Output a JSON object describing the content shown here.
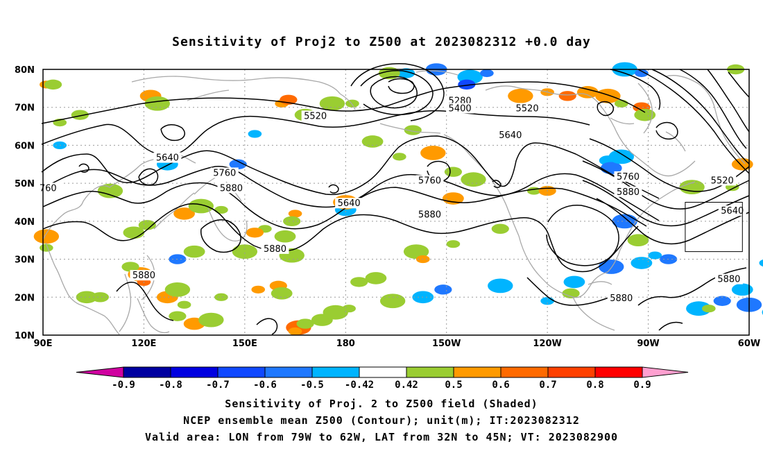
{
  "title": "Sensitivity of Proj2 to Z500 at 2023082312 +0.0 day",
  "map": {
    "lon_range": [
      90,
      300
    ],
    "lat_range": [
      10,
      80
    ],
    "lat_ticks": [
      "10N",
      "20N",
      "30N",
      "40N",
      "50N",
      "60N",
      "70N",
      "80N"
    ],
    "lon_ticks": [
      "90E",
      "120E",
      "150E",
      "180",
      "150W",
      "120W",
      "90W",
      "60W"
    ],
    "lon_tick_values": [
      90,
      120,
      150,
      180,
      210,
      240,
      270,
      300
    ],
    "grid": true,
    "valid_box": {
      "lon": [
        281,
        298
      ],
      "lat": [
        32,
        45
      ]
    },
    "contour_labels": [
      {
        "text": "5280",
        "lon": 214,
        "lat": 71.5
      },
      {
        "text": "5400",
        "lon": 214,
        "lat": 69.5
      },
      {
        "text": "5520",
        "lon": 171,
        "lat": 67.5
      },
      {
        "text": "5520",
        "lon": 234,
        "lat": 69.5
      },
      {
        "text": "5640",
        "lon": 229,
        "lat": 62.5
      },
      {
        "text": "5640",
        "lon": 127,
        "lat": 56.5
      },
      {
        "text": "5760",
        "lon": 144,
        "lat": 52.5
      },
      {
        "text": "5880",
        "lon": 146,
        "lat": 48.5
      },
      {
        "text": "5640",
        "lon": 181,
        "lat": 44.5
      },
      {
        "text": "5760",
        "lon": 205,
        "lat": 50.5
      },
      {
        "text": "5880",
        "lon": 205,
        "lat": 41.5
      },
      {
        "text": "5880",
        "lon": 159,
        "lat": 32.5
      },
      {
        "text": "5880",
        "lon": 120,
        "lat": 25.5
      },
      {
        "text": "5760",
        "lon": 264,
        "lat": 51.5
      },
      {
        "text": "5880",
        "lon": 264,
        "lat": 47.5
      },
      {
        "text": "5520",
        "lon": 292,
        "lat": 50.5
      },
      {
        "text": "5640",
        "lon": 295,
        "lat": 42.5
      },
      {
        "text": "5880",
        "lon": 262,
        "lat": 19.5
      },
      {
        "text": "5880",
        "lon": 294,
        "lat": 24.5
      },
      {
        "text": "760",
        "lon": 91.5,
        "lat": 48.5
      }
    ],
    "shaded_patches": [
      {
        "lon": 91,
        "lat": 76,
        "level": 0.6
      },
      {
        "lon": 93,
        "lat": 76,
        "level": 0.5
      },
      {
        "lon": 122,
        "lat": 73,
        "level": 0.6
      },
      {
        "lon": 124,
        "lat": 71,
        "level": 0.5
      },
      {
        "lon": 161,
        "lat": 71,
        "level": 0.6
      },
      {
        "lon": 163,
        "lat": 72,
        "level": 0.7
      },
      {
        "lon": 168,
        "lat": 68,
        "level": 0.5
      },
      {
        "lon": 176,
        "lat": 71,
        "level": 0.5
      },
      {
        "lon": 182,
        "lat": 71,
        "level": 0.5
      },
      {
        "lon": 198,
        "lat": 79,
        "level": -0.5
      },
      {
        "lon": 207,
        "lat": 80,
        "level": -0.6
      },
      {
        "lon": 217,
        "lat": 78,
        "level": -0.5
      },
      {
        "lon": 222,
        "lat": 79,
        "level": -0.6
      },
      {
        "lon": 216,
        "lat": 76,
        "level": -0.7
      },
      {
        "lon": 193,
        "lat": 79,
        "level": 0.5
      },
      {
        "lon": 232,
        "lat": 73,
        "level": 0.6
      },
      {
        "lon": 240,
        "lat": 74,
        "level": 0.6
      },
      {
        "lon": 246,
        "lat": 73,
        "level": 0.7
      },
      {
        "lon": 252,
        "lat": 74,
        "level": 0.6
      },
      {
        "lon": 258,
        "lat": 73,
        "level": 0.6
      },
      {
        "lon": 262,
        "lat": 71,
        "level": 0.5
      },
      {
        "lon": 268,
        "lat": 70,
        "level": 0.7
      },
      {
        "lon": 269,
        "lat": 68,
        "level": 0.5
      },
      {
        "lon": 263,
        "lat": 80,
        "level": -0.5
      },
      {
        "lon": 268,
        "lat": 79,
        "level": -0.6
      },
      {
        "lon": 296,
        "lat": 80,
        "level": 0.5
      },
      {
        "lon": 298,
        "lat": 55,
        "level": 0.6
      },
      {
        "lon": 283,
        "lat": 49,
        "level": 0.5
      },
      {
        "lon": 295,
        "lat": 49,
        "level": 0.5
      },
      {
        "lon": 258,
        "lat": 56,
        "level": -0.5
      },
      {
        "lon": 259,
        "lat": 54,
        "level": -0.6
      },
      {
        "lon": 262,
        "lat": 57,
        "level": -0.5
      },
      {
        "lon": 153,
        "lat": 63,
        "level": -0.5
      },
      {
        "lon": 148,
        "lat": 55,
        "level": -0.6
      },
      {
        "lon": 127,
        "lat": 55,
        "level": -0.5
      },
      {
        "lon": 110,
        "lat": 48,
        "level": 0.5
      },
      {
        "lon": 95,
        "lat": 60,
        "level": -0.5
      },
      {
        "lon": 200,
        "lat": 64,
        "level": 0.5
      },
      {
        "lon": 188,
        "lat": 61,
        "level": 0.5
      },
      {
        "lon": 206,
        "lat": 58,
        "level": 0.6
      },
      {
        "lon": 196,
        "lat": 57,
        "level": 0.5
      },
      {
        "lon": 212,
        "lat": 53,
        "level": 0.5
      },
      {
        "lon": 212,
        "lat": 46,
        "level": 0.6
      },
      {
        "lon": 218,
        "lat": 51,
        "level": 0.5
      },
      {
        "lon": 236,
        "lat": 48,
        "level": 0.5
      },
      {
        "lon": 240,
        "lat": 48,
        "level": 0.6
      },
      {
        "lon": 180,
        "lat": 43,
        "level": -0.5
      },
      {
        "lon": 180,
        "lat": 45,
        "level": 0.6
      },
      {
        "lon": 165,
        "lat": 42,
        "level": 0.6
      },
      {
        "lon": 164,
        "lat": 40,
        "level": 0.5
      },
      {
        "lon": 162,
        "lat": 36,
        "level": 0.5
      },
      {
        "lon": 164,
        "lat": 31,
        "level": 0.5
      },
      {
        "lon": 156,
        "lat": 38,
        "level": 0.5
      },
      {
        "lon": 153,
        "lat": 37,
        "level": 0.6
      },
      {
        "lon": 132,
        "lat": 42,
        "level": 0.6
      },
      {
        "lon": 137,
        "lat": 44,
        "level": 0.5
      },
      {
        "lon": 143,
        "lat": 43,
        "level": 0.5
      },
      {
        "lon": 121,
        "lat": 39,
        "level": 0.5
      },
      {
        "lon": 117,
        "lat": 37,
        "level": 0.5
      },
      {
        "lon": 91,
        "lat": 36,
        "level": 0.6
      },
      {
        "lon": 91,
        "lat": 33,
        "level": 0.5
      },
      {
        "lon": 130,
        "lat": 30,
        "level": -0.6
      },
      {
        "lon": 135,
        "lat": 32,
        "level": 0.5
      },
      {
        "lon": 119,
        "lat": 26,
        "level": 0.6
      },
      {
        "lon": 120,
        "lat": 24,
        "level": 0.7
      },
      {
        "lon": 116,
        "lat": 28,
        "level": 0.5
      },
      {
        "lon": 127,
        "lat": 20,
        "level": 0.6
      },
      {
        "lon": 130,
        "lat": 22,
        "level": 0.5
      },
      {
        "lon": 132,
        "lat": 18,
        "level": 0.5
      },
      {
        "lon": 130,
        "lat": 15,
        "level": 0.5
      },
      {
        "lon": 135,
        "lat": 13,
        "level": 0.6
      },
      {
        "lon": 140,
        "lat": 14,
        "level": 0.5
      },
      {
        "lon": 143,
        "lat": 20,
        "level": 0.5
      },
      {
        "lon": 107,
        "lat": 20,
        "level": 0.5
      },
      {
        "lon": 103,
        "lat": 20,
        "level": 0.5
      },
      {
        "lon": 150,
        "lat": 32,
        "level": 0.5
      },
      {
        "lon": 154,
        "lat": 22,
        "level": 0.6
      },
      {
        "lon": 160,
        "lat": 23,
        "level": 0.6
      },
      {
        "lon": 161,
        "lat": 21,
        "level": 0.5
      },
      {
        "lon": 166,
        "lat": 12,
        "level": 0.7
      },
      {
        "lon": 165,
        "lat": 11,
        "level": 0.6
      },
      {
        "lon": 168,
        "lat": 13,
        "level": 0.5
      },
      {
        "lon": 173,
        "lat": 14,
        "level": 0.5
      },
      {
        "lon": 177,
        "lat": 16,
        "level": 0.5
      },
      {
        "lon": 181,
        "lat": 17,
        "level": 0.5
      },
      {
        "lon": 184,
        "lat": 24,
        "level": 0.5
      },
      {
        "lon": 189,
        "lat": 25,
        "level": 0.5
      },
      {
        "lon": 201,
        "lat": 32,
        "level": 0.5
      },
      {
        "lon": 203,
        "lat": 30,
        "level": 0.6
      },
      {
        "lon": 209,
        "lat": 22,
        "level": -0.6
      },
      {
        "lon": 203,
        "lat": 20,
        "level": -0.5
      },
      {
        "lon": 194,
        "lat": 19,
        "level": 0.5
      },
      {
        "lon": 212,
        "lat": 34,
        "level": 0.5
      },
      {
        "lon": 226,
        "lat": 38,
        "level": 0.5
      },
      {
        "lon": 267,
        "lat": 35,
        "level": 0.5
      },
      {
        "lon": 263,
        "lat": 40,
        "level": -0.6
      },
      {
        "lon": 272,
        "lat": 31,
        "level": -0.5
      },
      {
        "lon": 276,
        "lat": 30,
        "level": -0.6
      },
      {
        "lon": 268,
        "lat": 29,
        "level": -0.5
      },
      {
        "lon": 285,
        "lat": 17,
        "level": -0.5
      },
      {
        "lon": 288,
        "lat": 17,
        "level": 0.5
      },
      {
        "lon": 292,
        "lat": 19,
        "level": -0.6
      },
      {
        "lon": 298,
        "lat": 22,
        "level": -0.5
      },
      {
        "lon": 300,
        "lat": 18,
        "level": -0.6
      },
      {
        "lon": 305,
        "lat": 29,
        "level": -0.5
      },
      {
        "lon": 307,
        "lat": 13,
        "level": 0.5
      },
      {
        "lon": 307,
        "lat": 16,
        "level": -0.5
      },
      {
        "lon": 226,
        "lat": 23,
        "level": -0.5
      },
      {
        "lon": 240,
        "lat": 19,
        "level": -0.5
      },
      {
        "lon": 247,
        "lat": 21,
        "level": 0.5
      },
      {
        "lon": 248,
        "lat": 24,
        "level": -0.5
      },
      {
        "lon": 259,
        "lat": 28,
        "level": -0.6
      },
      {
        "lon": 95,
        "lat": 66,
        "level": 0.5
      },
      {
        "lon": 101,
        "lat": 68,
        "level": 0.5
      }
    ]
  },
  "colorbar": {
    "labels": [
      "-0.9",
      "-0.8",
      "-0.7",
      "-0.6",
      "-0.5",
      "-0.42",
      "0.42",
      "0.5",
      "0.6",
      "0.7",
      "0.8",
      "0.9"
    ],
    "colors": [
      "#0000a0",
      "#0000e0",
      "#1048ff",
      "#1f78ff",
      "#00b4ff",
      "#ffffff",
      "#9acd32",
      "#ff9a00",
      "#ff6a00",
      "#ff4000",
      "#ff0000"
    ],
    "left_tri": "#d000a0",
    "right_tri": "#ffa0d0"
  },
  "footer": {
    "line1": "Sensitivity of Proj. 2 to Z500 field (Shaded)",
    "line2": "NCEP ensemble mean Z500 (Contour); unit(m); IT:2023082312",
    "line3": "Valid area: LON from 79W to 62W, LAT from 32N to 45N; VT: 2023082900"
  }
}
